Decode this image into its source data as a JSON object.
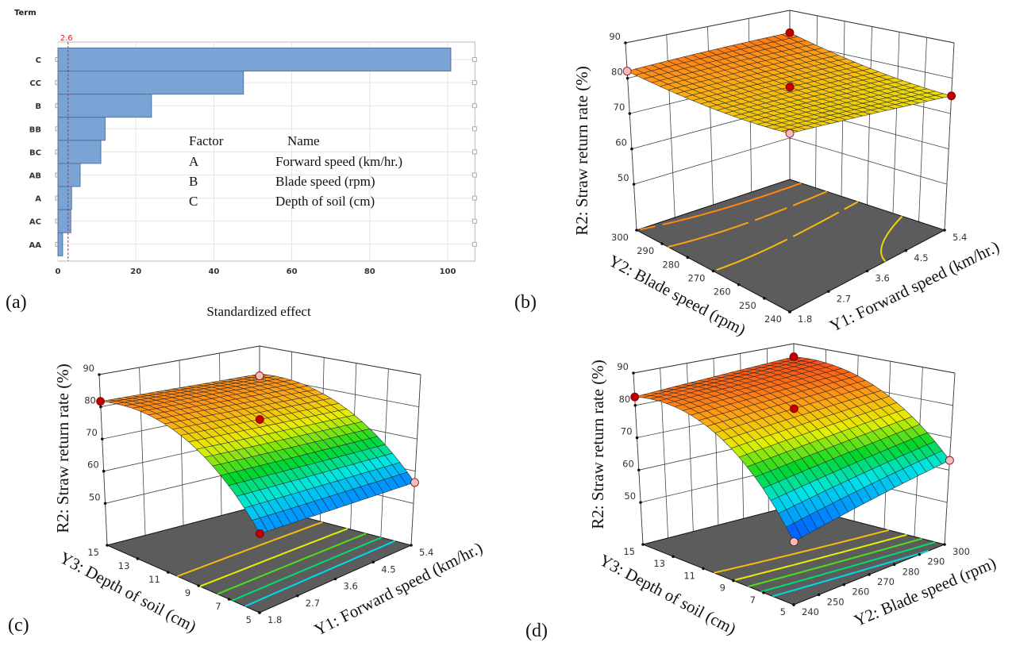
{
  "figure": {
    "panel_labels": {
      "a": "(a)",
      "b": "(b)",
      "c": "(c)",
      "d": "(d)"
    }
  },
  "chart_data": [
    {
      "panel": "a",
      "type": "bar",
      "orientation": "horizontal",
      "title": "",
      "ylabel": "Term",
      "xlabel": "Standardized effect",
      "categories": [
        "C",
        "CC",
        "B",
        "BB",
        "BC",
        "AB",
        "A",
        "AC",
        "AA"
      ],
      "values": [
        100.8,
        47.6,
        24.0,
        12.1,
        11.0,
        5.7,
        3.5,
        3.3,
        1.2
      ],
      "xlim": [
        0,
        107
      ],
      "xticks": [
        0,
        20,
        40,
        60,
        80,
        100
      ],
      "grid": true,
      "reference_line": {
        "value": 2.6,
        "label": "2.6",
        "color": "#d62728"
      },
      "bar_color": "#7ba4d6",
      "legend": {
        "header": [
          "Factor",
          "Name"
        ],
        "rows": [
          [
            "A",
            "Forward speed (km/hr.)"
          ],
          [
            "B",
            "Blade speed (rpm)"
          ],
          [
            "C",
            "Depth of soil (cm)"
          ]
        ]
      }
    },
    {
      "panel": "b",
      "type": "surface",
      "zlabel": "R2: Straw return rate (%)",
      "x1label": "Y2: Blade speed (rpm)",
      "x2label": "Y1: Forward speed (km/hr.)",
      "x1range": [
        240,
        300
      ],
      "x2range": [
        1.8,
        5.4
      ],
      "x1ticks": [
        240,
        250,
        260,
        270,
        280,
        290,
        300
      ],
      "x2ticks": [
        1.8,
        2.7,
        3.6,
        4.5,
        5.4
      ],
      "zticks": [
        50,
        60,
        70,
        80,
        90
      ],
      "zlim": [
        37,
        90
      ],
      "color_range": [
        50,
        90
      ],
      "model": {
        "const": 77,
        "s": -1,
        "t": -1,
        "st": 3,
        "s2": 6,
        "t2": -1,
        "s2t": 0
      },
      "contour_levels": [
        76,
        78,
        80,
        82
      ],
      "design_points": [
        {
          "x1": 300,
          "x2": 1.8,
          "z": 82,
          "color": "#f4bcbc"
        },
        {
          "x1": 300,
          "x2": 5.4,
          "z": 83,
          "color": "#c00000"
        },
        {
          "x1": 270,
          "x2": 3.6,
          "z": 78,
          "color": "#c00000"
        },
        {
          "x1": 240,
          "x2": 5.4,
          "z": 75,
          "color": "#c00000"
        },
        {
          "x1": 240,
          "x2": 1.8,
          "z": 77,
          "color": "#f4bcbc"
        }
      ]
    },
    {
      "panel": "c",
      "type": "surface",
      "zlabel": "R2: Straw return rate (%)",
      "x1label": "Y3: Depth of soil  (cm)",
      "x2label": "Y1: Forward speed (km/hr.)",
      "x1range": [
        5,
        15
      ],
      "x2range": [
        1.8,
        5.4
      ],
      "x1ticks": [
        5,
        7,
        9,
        11,
        13,
        15
      ],
      "x2ticks": [
        1.8,
        2.7,
        3.6,
        4.5,
        5.4
      ],
      "zticks": [
        50,
        60,
        70,
        80,
        90
      ],
      "zlim": [
        37,
        90
      ],
      "color_range": [
        50,
        90
      ],
      "model": {
        "const": 57,
        "s": 55.56,
        "t": -0.5,
        "st": -1.11,
        "s2": -30.86,
        "t2": 0,
        "s2t": 0.617
      },
      "contour_levels": [
        62,
        66,
        70,
        74,
        78
      ],
      "design_points": [
        {
          "x1": 15,
          "x2": 1.8,
          "z": 81.7,
          "color": "#c00000"
        },
        {
          "x1": 15,
          "x2": 5.4,
          "z": 80.1,
          "color": "#f4bcbc"
        },
        {
          "x1": 10,
          "x2": 3.6,
          "z": 76.6,
          "color": "#c00000"
        },
        {
          "x1": 5,
          "x2": 1.8,
          "z": 57,
          "color": "#c00000"
        },
        {
          "x1": 5,
          "x2": 5.4,
          "z": 56.5,
          "color": "#f4bcbc"
        }
      ]
    },
    {
      "panel": "d",
      "type": "surface",
      "zlabel": "R2: Straw return rate (%)",
      "x1label": "Y3: Depth of soil (cm)",
      "x2label": "Y2: Blade speed (rpm)",
      "x1range": [
        5,
        15
      ],
      "x2range": [
        240,
        300
      ],
      "x1ticks": [
        5,
        7,
        9,
        11,
        13,
        15
      ],
      "x2ticks": [
        240,
        250,
        260,
        270,
        280,
        290,
        300
      ],
      "zticks": [
        50,
        60,
        70,
        80,
        90
      ],
      "zlim": [
        37,
        90
      ],
      "color_range": [
        50,
        90
      ],
      "model": {
        "const": 53.5,
        "s": 65.56,
        "t": 9.5,
        "st": -14.44,
        "s2": -36.42,
        "t2": 0,
        "s2t": 8.02
      },
      "contour_levels": [
        62,
        66,
        70,
        74,
        78
      ],
      "design_points": [
        {
          "x1": 15,
          "x2": 240,
          "z": 82.6,
          "color": "#c00000"
        },
        {
          "x1": 15,
          "x2": 300,
          "z": 85.7,
          "color": "#c00000"
        },
        {
          "x1": 10,
          "x2": 270,
          "z": 79.3,
          "color": "#c00000"
        },
        {
          "x1": 5,
          "x2": 240,
          "z": 53.5,
          "color": "#f4bcbc"
        },
        {
          "x1": 5,
          "x2": 300,
          "z": 63,
          "color": "#f4bcbc"
        }
      ]
    }
  ]
}
